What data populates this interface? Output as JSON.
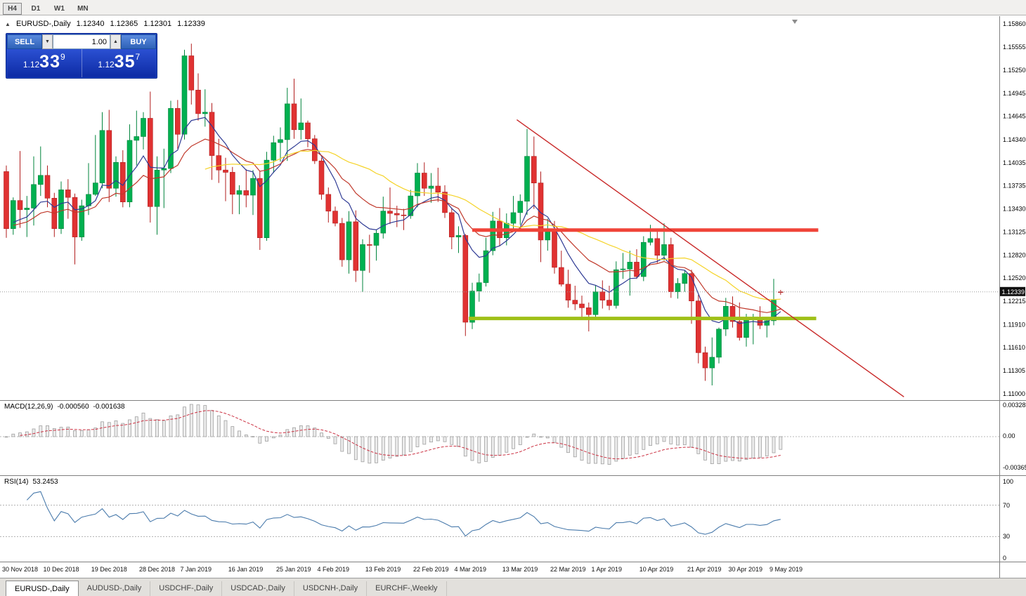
{
  "toolbar": {
    "timeframes": [
      {
        "label": "H4",
        "active": true
      },
      {
        "label": "D1",
        "active": false
      },
      {
        "label": "W1",
        "active": false
      },
      {
        "label": "MN",
        "active": false
      }
    ]
  },
  "chart": {
    "header": {
      "marker": "▲",
      "title": "EURUSD-,Daily",
      "open": "1.12340",
      "high": "1.12365",
      "low": "1.12301",
      "close": "1.12339"
    },
    "trade_panel": {
      "sell_label": "SELL",
      "buy_label": "BUY",
      "volume": "1.00",
      "spinner_up": "▲",
      "spinner_down": "▼",
      "sell_price": {
        "base": "1.12",
        "big": "33",
        "sup": "9"
      },
      "buy_price": {
        "base": "1.12",
        "big": "35",
        "sup": "7"
      }
    }
  },
  "macd_panel": {
    "title": "MACD(12,26,9)",
    "value_main": "-0.000560",
    "value_signal": "-0.001638",
    "scale_top": "0.003287",
    "scale_mid": "0.00",
    "scale_bottom": "-0.003659"
  },
  "rsi_panel": {
    "title": "RSI(14)",
    "value": "53.2453",
    "scale": [
      "100",
      "70",
      "30",
      "0"
    ]
  },
  "tabs": [
    {
      "label": "EURUSD-,Daily",
      "active": true
    },
    {
      "label": "AUDUSD-,Daily",
      "active": false
    },
    {
      "label": "USDCHF-,Daily",
      "active": false
    },
    {
      "label": "USDCAD-,Daily",
      "active": false
    },
    {
      "label": "USDCNH-,Daily",
      "active": false
    },
    {
      "label": "EURCHF-,Weekly",
      "active": false
    }
  ],
  "chart_data": {
    "type": "candlestick",
    "title": "EURUSD-,Daily",
    "current_price": "1.12339",
    "up_color": "#00b050",
    "down_color": "#e03232",
    "up_border": "#00843c",
    "down_border": "#b21e1e",
    "price_scale": [
      "1.15860",
      "1.15555",
      "1.15250",
      "1.14945",
      "1.14645",
      "1.14340",
      "1.14035",
      "1.13735",
      "1.13430",
      "1.13125",
      "1.12820",
      "1.12520",
      "1.12215",
      "1.11910",
      "1.11610",
      "1.11305",
      "1.11000"
    ],
    "x_ticks": [
      [
        0,
        "30 Nov 2018"
      ],
      [
        6,
        "10 Dec 2018"
      ],
      [
        13,
        "19 Dec 2018"
      ],
      [
        20,
        "28 Dec 2018"
      ],
      [
        26,
        "7 Jan 2019"
      ],
      [
        33,
        "16 Jan 2019"
      ],
      [
        40,
        "25 Jan 2019"
      ],
      [
        46,
        "4 Feb 2019"
      ],
      [
        53,
        "13 Feb 2019"
      ],
      [
        60,
        "22 Feb 2019"
      ],
      [
        66,
        "4 Mar 2019"
      ],
      [
        73,
        "13 Mar 2019"
      ],
      [
        80,
        "22 Mar 2019"
      ],
      [
        86,
        "1 Apr 2019"
      ],
      [
        93,
        "10 Apr 2019"
      ],
      [
        100,
        "21 Apr 2019"
      ],
      [
        106,
        "30 Apr 2019"
      ],
      [
        112,
        "9 May 2019"
      ]
    ],
    "overlays": [
      {
        "name": "ma-fast-blue",
        "type": "ema",
        "period": 8,
        "color": "#2e3a94"
      },
      {
        "name": "ma-mid-red",
        "type": "ema",
        "period": 17,
        "color": "#c0392b"
      },
      {
        "name": "ma-slow-yellow",
        "type": "sma",
        "period": 30,
        "color": "#f5d327"
      }
    ],
    "hlines": [
      {
        "name": "resistance-line",
        "price": 1.1315,
        "i1": 68,
        "i2": 118.5,
        "color": "#f04438",
        "width": 5
      },
      {
        "name": "support-line",
        "price": 1.1199,
        "i1": 67.5,
        "i2": 118.2,
        "color": "#9fc018",
        "width": 5
      }
    ],
    "trendline": {
      "i1": 74.5,
      "p1": 1.146,
      "i2": 131,
      "p2": 1.1096,
      "color": "#c92a2a",
      "width": 1.4
    },
    "macd": {
      "label": "MACD(12,26,9)",
      "fast": 12,
      "slow": 26,
      "signal": 9,
      "histogram_color": "#ececec",
      "signal_color": "#cc3344"
    },
    "rsi": {
      "label": "RSI(14)",
      "period": 14,
      "levels": [
        70,
        30
      ],
      "color": "#4a7bac"
    },
    "ohlc": [
      [
        1.1392,
        1.14,
        1.1305,
        1.1317
      ],
      [
        1.1317,
        1.1358,
        1.1309,
        1.1354
      ],
      [
        1.1354,
        1.1419,
        1.1318,
        1.1342
      ],
      [
        1.1342,
        1.136,
        1.1306,
        1.1344
      ],
      [
        1.1344,
        1.1412,
        1.1321,
        1.1375
      ],
      [
        1.1375,
        1.1425,
        1.136,
        1.1387
      ],
      [
        1.1387,
        1.14,
        1.1345,
        1.1357
      ],
      [
        1.1357,
        1.1364,
        1.1306,
        1.1317
      ],
      [
        1.1317,
        1.1379,
        1.131,
        1.1368
      ],
      [
        1.1368,
        1.1382,
        1.133,
        1.1358
      ],
      [
        1.1358,
        1.1363,
        1.127,
        1.1306
      ],
      [
        1.1306,
        1.1355,
        1.1301,
        1.1347
      ],
      [
        1.1347,
        1.1403,
        1.1335,
        1.1362
      ],
      [
        1.1362,
        1.144,
        1.136,
        1.1377
      ],
      [
        1.1377,
        1.147,
        1.137,
        1.1446
      ],
      [
        1.1446,
        1.1473,
        1.1352,
        1.137
      ],
      [
        1.137,
        1.1412,
        1.1359,
        1.1404
      ],
      [
        1.1404,
        1.142,
        1.1345,
        1.1352
      ],
      [
        1.1352,
        1.1454,
        1.1345,
        1.1433
      ],
      [
        1.1433,
        1.1472,
        1.14,
        1.1438
      ],
      [
        1.1438,
        1.147,
        1.1421,
        1.1462
      ],
      [
        1.1462,
        1.1497,
        1.1325,
        1.1346
      ],
      [
        1.1346,
        1.1412,
        1.1309,
        1.1394
      ],
      [
        1.1394,
        1.1422,
        1.1344,
        1.1396
      ],
      [
        1.1396,
        1.1485,
        1.139,
        1.1475
      ],
      [
        1.1475,
        1.1486,
        1.1422,
        1.1441
      ],
      [
        1.1441,
        1.1552,
        1.1434,
        1.1544
      ],
      [
        1.1544,
        1.156,
        1.148,
        1.1499
      ],
      [
        1.1499,
        1.1521,
        1.1459,
        1.1468
      ],
      [
        1.1468,
        1.15,
        1.1451,
        1.147
      ],
      [
        1.147,
        1.1482,
        1.1381,
        1.1413
      ],
      [
        1.1413,
        1.1435,
        1.1377,
        1.1394
      ],
      [
        1.1394,
        1.141,
        1.1353,
        1.1391
      ],
      [
        1.1391,
        1.1398,
        1.1336,
        1.1362
      ],
      [
        1.1362,
        1.1374,
        1.1336,
        1.1367
      ],
      [
        1.1367,
        1.1395,
        1.1345,
        1.1361
      ],
      [
        1.1361,
        1.1394,
        1.1335,
        1.1383
      ],
      [
        1.1383,
        1.1393,
        1.1289,
        1.1305
      ],
      [
        1.1305,
        1.1418,
        1.1301,
        1.1407
      ],
      [
        1.1407,
        1.1439,
        1.139,
        1.143
      ],
      [
        1.143,
        1.145,
        1.1405,
        1.1434
      ],
      [
        1.1434,
        1.1502,
        1.1406,
        1.1481
      ],
      [
        1.1481,
        1.1514,
        1.1435,
        1.1447
      ],
      [
        1.1447,
        1.1488,
        1.1434,
        1.1456
      ],
      [
        1.1456,
        1.1459,
        1.1424,
        1.1435
      ],
      [
        1.1435,
        1.144,
        1.1402,
        1.1406
      ],
      [
        1.1406,
        1.141,
        1.1355,
        1.1362
      ],
      [
        1.1362,
        1.1371,
        1.1325,
        1.134
      ],
      [
        1.134,
        1.1346,
        1.132,
        1.1324
      ],
      [
        1.1324,
        1.1331,
        1.1267,
        1.1276
      ],
      [
        1.1276,
        1.134,
        1.1258,
        1.1326
      ],
      [
        1.1326,
        1.1341,
        1.1247,
        1.1262
      ],
      [
        1.1262,
        1.1303,
        1.1234,
        1.1296
      ],
      [
        1.1296,
        1.1309,
        1.1259,
        1.1295
      ],
      [
        1.1295,
        1.1316,
        1.1275,
        1.1311
      ],
      [
        1.1311,
        1.1359,
        1.1304,
        1.134
      ],
      [
        1.134,
        1.1371,
        1.1323,
        1.1337
      ],
      [
        1.1337,
        1.1347,
        1.1319,
        1.1335
      ],
      [
        1.1335,
        1.1343,
        1.1315,
        1.1334
      ],
      [
        1.1334,
        1.1368,
        1.133,
        1.136
      ],
      [
        1.136,
        1.1403,
        1.1345,
        1.139
      ],
      [
        1.139,
        1.1404,
        1.136,
        1.137
      ],
      [
        1.137,
        1.139,
        1.1351,
        1.1373
      ],
      [
        1.1373,
        1.1397,
        1.1352,
        1.1365
      ],
      [
        1.1365,
        1.1374,
        1.1331,
        1.1338
      ],
      [
        1.1338,
        1.1344,
        1.129,
        1.1306
      ],
      [
        1.1306,
        1.132,
        1.1285,
        1.1308
      ],
      [
        1.1308,
        1.131,
        1.1176,
        1.1194
      ],
      [
        1.1194,
        1.1246,
        1.1185,
        1.1235
      ],
      [
        1.1235,
        1.1258,
        1.1221,
        1.1246
      ],
      [
        1.1246,
        1.1305,
        1.1241,
        1.1288
      ],
      [
        1.1288,
        1.1339,
        1.1282,
        1.1327
      ],
      [
        1.1327,
        1.1344,
        1.1294,
        1.1305
      ],
      [
        1.1305,
        1.1337,
        1.1295,
        1.1324
      ],
      [
        1.1324,
        1.136,
        1.1316,
        1.1338
      ],
      [
        1.1338,
        1.1362,
        1.1322,
        1.1353
      ],
      [
        1.1353,
        1.1448,
        1.1335,
        1.1412
      ],
      [
        1.1412,
        1.1438,
        1.1343,
        1.1377
      ],
      [
        1.1377,
        1.1392,
        1.1273,
        1.1302
      ],
      [
        1.1302,
        1.133,
        1.1288,
        1.1314
      ],
      [
        1.1314,
        1.1327,
        1.1258,
        1.1266
      ],
      [
        1.1266,
        1.1288,
        1.1241,
        1.1244
      ],
      [
        1.1244,
        1.1263,
        1.1213,
        1.1223
      ],
      [
        1.1223,
        1.1242,
        1.121,
        1.1218
      ],
      [
        1.1218,
        1.1229,
        1.1198,
        1.1213
      ],
      [
        1.1213,
        1.122,
        1.1182,
        1.1204
      ],
      [
        1.1204,
        1.1243,
        1.12,
        1.1234
      ],
      [
        1.1234,
        1.1249,
        1.1212,
        1.1223
      ],
      [
        1.1223,
        1.1242,
        1.121,
        1.1216
      ],
      [
        1.1216,
        1.1274,
        1.1212,
        1.1263
      ],
      [
        1.1263,
        1.1285,
        1.1251,
        1.1264
      ],
      [
        1.1264,
        1.1288,
        1.1229,
        1.1273
      ],
      [
        1.1273,
        1.129,
        1.1251,
        1.1254
      ],
      [
        1.1254,
        1.1307,
        1.1248,
        1.1299
      ],
      [
        1.1299,
        1.1322,
        1.1295,
        1.1304
      ],
      [
        1.1304,
        1.1316,
        1.1272,
        1.1282
      ],
      [
        1.1282,
        1.1324,
        1.1275,
        1.1296
      ],
      [
        1.1296,
        1.1305,
        1.1226,
        1.1234
      ],
      [
        1.1234,
        1.1252,
        1.1225,
        1.1245
      ],
      [
        1.1245,
        1.1262,
        1.1234,
        1.1258
      ],
      [
        1.1258,
        1.1263,
        1.1192,
        1.1222
      ],
      [
        1.1222,
        1.123,
        1.114,
        1.1154
      ],
      [
        1.1154,
        1.1162,
        1.1117,
        1.1134
      ],
      [
        1.1134,
        1.1174,
        1.1111,
        1.1148
      ],
      [
        1.1148,
        1.1187,
        1.114,
        1.1185
      ],
      [
        1.1185,
        1.1226,
        1.1176,
        1.1215
      ],
      [
        1.1215,
        1.1228,
        1.1187,
        1.1195
      ],
      [
        1.1195,
        1.122,
        1.117,
        1.1174
      ],
      [
        1.1174,
        1.1205,
        1.1162,
        1.1199
      ],
      [
        1.1199,
        1.1205,
        1.1165,
        1.1199
      ],
      [
        1.1199,
        1.1215,
        1.1185,
        1.119
      ],
      [
        1.119,
        1.1199,
        1.1174,
        1.1196
      ],
      [
        1.1196,
        1.1251,
        1.119,
        1.1223
      ],
      [
        1.1234,
        1.12365,
        1.12301,
        1.12339
      ]
    ]
  }
}
